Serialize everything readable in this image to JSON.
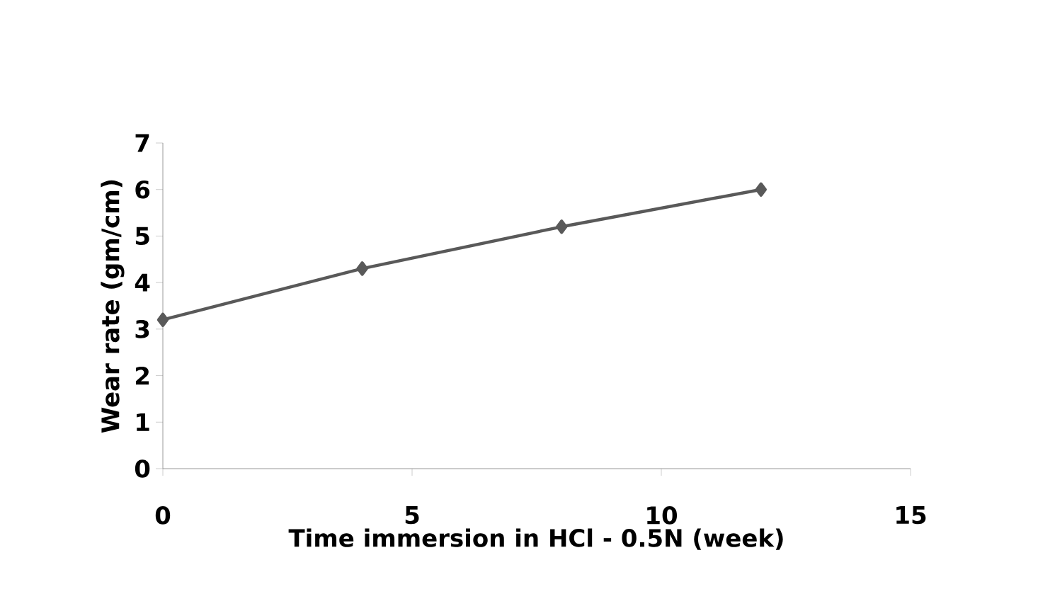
{
  "chart_data": {
    "type": "line",
    "xlabel": "Time immersion in HCl - 0.5N (week)",
    "ylabel": "Wear rate (gm/cm)",
    "x": [
      0,
      4,
      8,
      12
    ],
    "series": [
      {
        "color": "#595959",
        "values": [
          3.2,
          4.3,
          5.2,
          6.0
        ]
      }
    ],
    "xlim": [
      0,
      15
    ],
    "xticks": [
      0,
      5,
      10,
      15
    ],
    "ylim": [
      0,
      7
    ],
    "yticks": [
      0,
      1,
      2,
      3,
      4,
      5,
      6,
      7
    ],
    "marker": "diamond",
    "line_style": "solid"
  }
}
